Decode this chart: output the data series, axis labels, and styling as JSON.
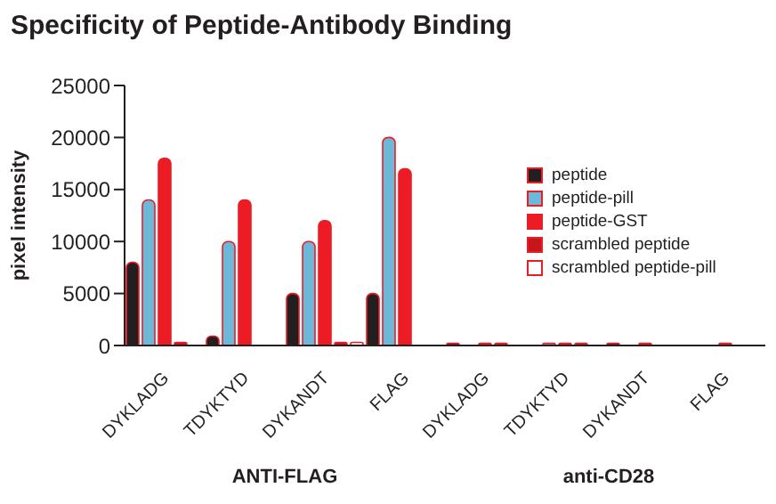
{
  "chart_data": {
    "type": "bar",
    "title": "Specificity of Peptide-Antibody Binding",
    "ylabel": "pixel intensity",
    "categories": [
      "DYKLADG",
      "TDYKTYD",
      "DYKANDT",
      "FLAG",
      "DYKLADG",
      "TDYKTYD",
      "DYKANDT",
      "FLAG"
    ],
    "series": [
      {
        "name": "peptide",
        "color": "#231f20",
        "values": [
          8000,
          900,
          5000,
          5000,
          200,
          0,
          200,
          0
        ]
      },
      {
        "name": "peptide-pill",
        "color": "#6cb8d9",
        "values": [
          14000,
          10000,
          10000,
          20000,
          0,
          200,
          0,
          0
        ]
      },
      {
        "name": "peptide-GST",
        "color": "#ed1c24",
        "values": [
          18000,
          14000,
          12000,
          17000,
          200,
          200,
          200,
          200
        ]
      },
      {
        "name": "scrambled peptide",
        "color": "#c4161c",
        "values": [
          300,
          0,
          300,
          0,
          200,
          200,
          0,
          0
        ]
      },
      {
        "name": "scrambled peptide-pill",
        "color": "#ffffff",
        "values": [
          0,
          0,
          300,
          0,
          0,
          0,
          0,
          0
        ]
      }
    ],
    "ylim": [
      0,
      25000
    ],
    "yticks": [
      0,
      5000,
      10000,
      15000,
      20000,
      25000
    ],
    "legend": "right",
    "annotations": [
      "ANTI-FLAG",
      "anti-CD28"
    ]
  }
}
